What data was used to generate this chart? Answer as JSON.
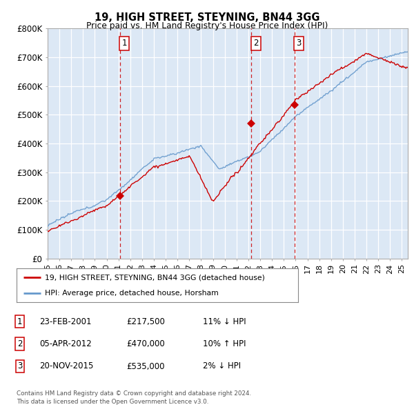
{
  "title": "19, HIGH STREET, STEYNING, BN44 3GG",
  "subtitle": "Price paid vs. HM Land Registry's House Price Index (HPI)",
  "ylim": [
    0,
    800000
  ],
  "yticks": [
    0,
    100000,
    200000,
    300000,
    400000,
    500000,
    600000,
    700000,
    800000
  ],
  "ytick_labels": [
    "£0",
    "£100K",
    "£200K",
    "£300K",
    "£400K",
    "£500K",
    "£600K",
    "£700K",
    "£800K"
  ],
  "bg_color": "#dce8f5",
  "grid_color": "#ffffff",
  "line_color_hpi": "#6699cc",
  "line_color_price": "#cc0000",
  "vline_color": "#cc0000",
  "transaction_dates": [
    2001.14,
    2012.26,
    2015.9
  ],
  "transaction_prices": [
    217500,
    470000,
    535000
  ],
  "transaction_labels": [
    "1",
    "2",
    "3"
  ],
  "legend_line1": "19, HIGH STREET, STEYNING, BN44 3GG (detached house)",
  "legend_line2": "HPI: Average price, detached house, Horsham",
  "table_rows": [
    [
      "1",
      "23-FEB-2001",
      "£217,500",
      "11% ↓ HPI"
    ],
    [
      "2",
      "05-APR-2012",
      "£470,000",
      "10% ↑ HPI"
    ],
    [
      "3",
      "20-NOV-2015",
      "£535,000",
      "2% ↓ HPI"
    ]
  ],
  "footer": "Contains HM Land Registry data © Crown copyright and database right 2024.\nThis data is licensed under the Open Government Licence v3.0.",
  "xmin": 1995.0,
  "xmax": 2025.5
}
